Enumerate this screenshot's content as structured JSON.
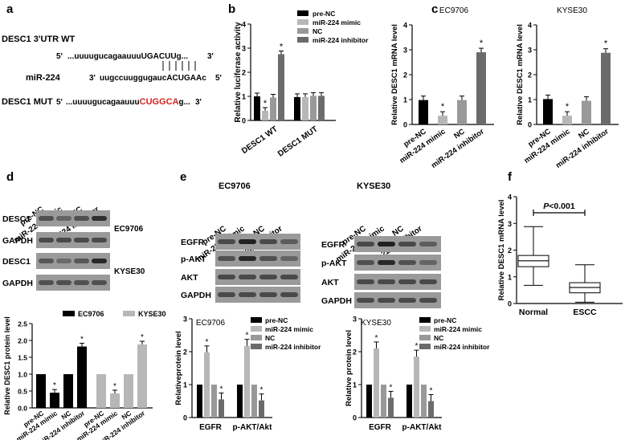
{
  "colors": {
    "black": "#000000",
    "light_gray": "#b7b7b7",
    "mid_gray": "#999999",
    "dark_gray": "#6b6b6b",
    "red": "#d4231e"
  },
  "panel_a": {
    "letter": "a",
    "wt_label": "DESC1 3'UTR WT",
    "wt_5": "5'",
    "wt_seq": "...uuuugucagaauuuUGACUUg...",
    "wt_3": "3'",
    "mir_label": "miR-224",
    "mir_3": "3'",
    "mir_seq": "uugccuuggugaucACUGAAc",
    "mir_5": "5'",
    "mut_label": "DESC1 MUT",
    "mut_5": "5'",
    "mut_seq_pre": "...uuuugucagaauuu",
    "mut_seq_red": "CUGGCA",
    "mut_seq_post": "g...",
    "mut_3": "3'"
  },
  "panel_b": {
    "letter": "b",
    "chart_data": {
      "type": "bar",
      "ylabel": "Relative luciferase activity",
      "ylim": [
        0,
        4
      ],
      "yticks": [
        "0",
        "1",
        "2",
        "3",
        "4"
      ],
      "categories": [
        "DESC1 WT",
        "DESC1 MUT"
      ],
      "series": [
        {
          "name": "pre-NC",
          "color": "#000000",
          "values": [
            1.0,
            0.97
          ]
        },
        {
          "name": "miR-224 mimic",
          "color": "#b7b7b7",
          "values": [
            0.4,
            0.97
          ]
        },
        {
          "name": "NC",
          "color": "#999999",
          "values": [
            0.95,
            1.02
          ]
        },
        {
          "name": "miR-224 inhibitor",
          "color": "#6b6b6b",
          "values": [
            2.75,
            1.02
          ]
        }
      ],
      "annotations": [
        "*",
        "*"
      ]
    }
  },
  "panel_c": {
    "letter": "c",
    "chart_data": [
      {
        "type": "bar",
        "title": "EC9706",
        "ylabel": "Relative DESC1 mRNA level",
        "ylim": [
          0,
          4
        ],
        "yticks": [
          "0",
          "1",
          "2",
          "3",
          "4"
        ],
        "categories": [
          "pre-NC",
          "miR-224 mimic",
          "NC",
          "miR-224 inhibitor"
        ],
        "values": [
          0.98,
          0.35,
          0.98,
          2.9
        ],
        "colors": [
          "#000000",
          "#b7b7b7",
          "#999999",
          "#6b6b6b"
        ],
        "annotations": [
          "",
          "*",
          "",
          "*"
        ]
      },
      {
        "type": "bar",
        "title": "KYSE30",
        "ylabel": "Relative DESC1 mRNA level",
        "ylim": [
          0,
          4
        ],
        "yticks": [
          "0",
          "1",
          "2",
          "3",
          "4"
        ],
        "categories": [
          "pre-NC",
          "miR-224 mimic",
          "NC",
          "miR-224 inhibitor"
        ],
        "values": [
          1.02,
          0.35,
          0.95,
          2.88
        ],
        "colors": [
          "#000000",
          "#b7b7b7",
          "#999999",
          "#6b6b6b"
        ],
        "annotations": [
          "",
          "*",
          "",
          "*"
        ]
      }
    ]
  },
  "panel_d": {
    "letter": "d",
    "lanes": [
      "pre-NC",
      "miR-224 mimic",
      "NC",
      "miR-224 inhibitor"
    ],
    "blot_rows": [
      "DESC1",
      "GAPDH",
      "DESC1",
      "GAPDH"
    ],
    "cell_line_1": "EC9706",
    "cell_line_2": "KYSE30",
    "chart_data": {
      "type": "bar",
      "ylabel": "Relative DESC1 protein level",
      "ylim": [
        0,
        2.5
      ],
      "yticks": [
        "0.0",
        "0.5",
        "1.0",
        "1.5",
        "2.0",
        "2.5"
      ],
      "groups": [
        "EC9706",
        "KYSE30"
      ],
      "categories": [
        "pre-NC",
        "miR-224 mimic",
        "NC",
        "miR-224 inhibitor"
      ],
      "series": [
        {
          "name": "EC9706",
          "color": "#000000",
          "values": [
            1.0,
            0.45,
            1.0,
            1.82
          ]
        },
        {
          "name": "KYSE30",
          "color": "#b7b7b7",
          "values": [
            1.0,
            0.43,
            1.0,
            1.88
          ]
        }
      ],
      "annotations": [
        "*",
        "*",
        "*",
        "*"
      ]
    }
  },
  "panel_e": {
    "letter": "e",
    "left_title": "EC9706",
    "right_title": "KYSE30",
    "lanes": [
      "pre-NC",
      "miR-224 mimic",
      "NC",
      "miR-224 inhibitor"
    ],
    "blot_rows": [
      "EGFR",
      "p-AKT",
      "AKT",
      "GAPDH"
    ],
    "chart_data": [
      {
        "type": "bar",
        "title": "EC9706",
        "ylabel": "Relativeprotein level",
        "ylim": [
          0,
          3
        ],
        "yticks": [
          "0",
          "1",
          "2",
          "3"
        ],
        "categories": [
          "EGFR",
          "p-AKT/Akt"
        ],
        "series": [
          {
            "name": "pre-NC",
            "color": "#000000",
            "values": [
              1.0,
              1.0
            ]
          },
          {
            "name": "miR-224 mimic",
            "color": "#b7b7b7",
            "values": [
              1.98,
              2.18
            ]
          },
          {
            "name": "NC",
            "color": "#999999",
            "values": [
              1.0,
              1.0
            ]
          },
          {
            "name": "miR-224 inhibitor",
            "color": "#6b6b6b",
            "values": [
              0.55,
              0.52
            ]
          }
        ],
        "annotations": [
          "*",
          "*",
          "*",
          "*"
        ]
      },
      {
        "type": "bar",
        "title": "KYSE30",
        "ylabel": "Relative protein level",
        "ylim": [
          0,
          3
        ],
        "yticks": [
          "0",
          "1",
          "2",
          "3"
        ],
        "categories": [
          "EGFR",
          "p-AKT/Akt"
        ],
        "series": [
          {
            "name": "pre-NC",
            "color": "#000000",
            "values": [
              1.0,
              1.0
            ]
          },
          {
            "name": "miR-224 mimic",
            "color": "#b7b7b7",
            "values": [
              2.1,
              1.85
            ]
          },
          {
            "name": "NC",
            "color": "#999999",
            "values": [
              1.0,
              1.0
            ]
          },
          {
            "name": "miR-224 inhibitor",
            "color": "#6b6b6b",
            "values": [
              0.6,
              0.5
            ]
          }
        ],
        "annotations": [
          "*",
          "*",
          "*",
          "*"
        ]
      }
    ]
  },
  "panel_f": {
    "letter": "f",
    "chart_data": {
      "type": "box",
      "ylabel": "Relative DESC1 mRNA level",
      "ylim": [
        0,
        4
      ],
      "yticks": [
        "0",
        "1",
        "2",
        "3",
        "4"
      ],
      "categories": [
        "Normal",
        "ESCC"
      ],
      "boxes": [
        {
          "name": "Normal",
          "min": 0.68,
          "q1": 1.38,
          "median": 1.6,
          "q3": 1.8,
          "max": 2.88
        },
        {
          "name": "ESCC",
          "min": 0.05,
          "q1": 0.4,
          "median": 0.6,
          "q3": 0.78,
          "max": 1.45
        }
      ],
      "annotation_p": "P",
      "annotation_rest": "<0.001"
    }
  }
}
